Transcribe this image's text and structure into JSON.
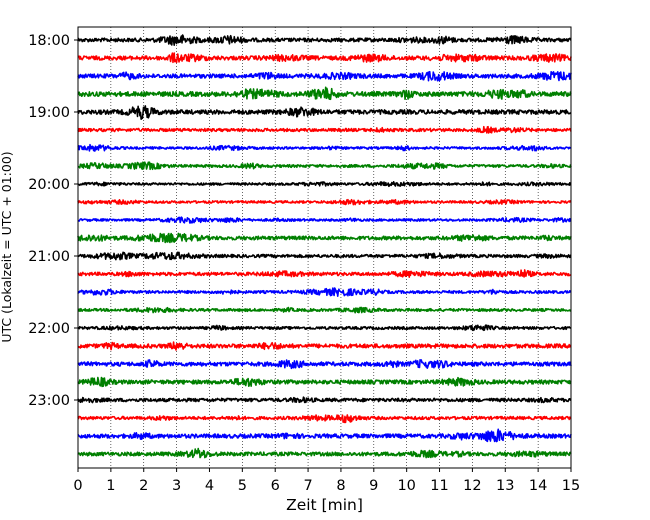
{
  "chart_data": {
    "type": "line",
    "xlabel": "Zeit  [min]",
    "ylabel": "UTC (Lokalzeit = UTC + 01:00)",
    "xlim": [
      0,
      15
    ],
    "x_ticks": [
      0,
      1,
      2,
      3,
      4,
      5,
      6,
      7,
      8,
      9,
      10,
      11,
      12,
      13,
      14,
      15
    ],
    "y_ticks": [
      {
        "label": "18:00",
        "trace": 0
      },
      {
        "label": "19:00",
        "trace": 4
      },
      {
        "label": "20:00",
        "trace": 8
      },
      {
        "label": "21:00",
        "trace": 12
      },
      {
        "label": "22:00",
        "trace": 16
      },
      {
        "label": "23:00",
        "trace": 20
      }
    ],
    "grid": "vertical-dotted",
    "trace_interval_min": 15,
    "color_cycle": [
      "#000000",
      "#ff0000",
      "#0000ff",
      "#008000"
    ],
    "series": [
      {
        "start": "18:00",
        "amplitude": 0.55
      },
      {
        "start": "18:15",
        "amplitude": 0.6
      },
      {
        "start": "18:30",
        "amplitude": 0.6
      },
      {
        "start": "18:45",
        "amplitude": 0.7
      },
      {
        "start": "19:00",
        "amplitude": 0.65
      },
      {
        "start": "19:15",
        "amplitude": 0.45
      },
      {
        "start": "19:30",
        "amplitude": 0.35
      },
      {
        "start": "19:45",
        "amplitude": 0.4
      },
      {
        "start": "20:00",
        "amplitude": 0.35
      },
      {
        "start": "20:15",
        "amplitude": 0.35
      },
      {
        "start": "20:30",
        "amplitude": 0.35
      },
      {
        "start": "20:45",
        "amplitude": 0.55
      },
      {
        "start": "21:00",
        "amplitude": 0.45
      },
      {
        "start": "21:15",
        "amplitude": 0.5
      },
      {
        "start": "21:30",
        "amplitude": 0.4
      },
      {
        "start": "21:45",
        "amplitude": 0.4
      },
      {
        "start": "22:00",
        "amplitude": 0.4
      },
      {
        "start": "22:15",
        "amplitude": 0.6
      },
      {
        "start": "22:30",
        "amplitude": 0.6
      },
      {
        "start": "22:45",
        "amplitude": 0.6
      },
      {
        "start": "23:00",
        "amplitude": 0.5
      },
      {
        "start": "23:15",
        "amplitude": 0.45
      },
      {
        "start": "23:30",
        "amplitude": 0.6
      },
      {
        "start": "23:45",
        "amplitude": 0.55
      }
    ]
  }
}
